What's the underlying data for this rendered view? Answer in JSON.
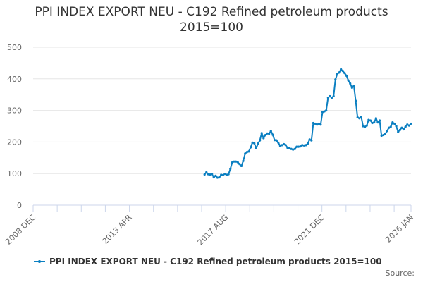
{
  "header": {
    "title_line1": "PPI INDEX EXPORT NEU - C192 Refined petroleum products",
    "title_line2": "2015=100"
  },
  "legend": {
    "label": "PPI INDEX EXPORT NEU - C192 Refined petroleum products 2015=100"
  },
  "footer": {
    "source": "Source:"
  },
  "colors": {
    "series": "#0b7fc1",
    "grid": "#e6e6e6",
    "axis": "#ccd6eb"
  },
  "chart_data": {
    "type": "line",
    "title": "PPI INDEX EXPORT NEU - C192 Refined petroleum products 2015=100",
    "xlabel": "",
    "ylabel": "",
    "ylim": [
      0,
      500
    ],
    "yticks": [
      "0",
      "100",
      "200",
      "300",
      "400",
      "500"
    ],
    "xticks": [
      "2008 DEC",
      "2013 APR",
      "2017 AUG",
      "2021 DEC",
      "2026 JAN"
    ],
    "grid": true,
    "legend_position": "bottom",
    "series": [
      {
        "name": "PPI INDEX EXPORT NEU - C192 Refined petroleum products 2015=100",
        "x": [
          "2016-09",
          "2016-10",
          "2016-11",
          "2016-12",
          "2017-01",
          "2017-02",
          "2017-03",
          "2017-04",
          "2017-05",
          "2017-06",
          "2017-07",
          "2017-08",
          "2017-09",
          "2017-10",
          "2017-11",
          "2017-12",
          "2018-01",
          "2018-02",
          "2018-03",
          "2018-04",
          "2018-05",
          "2018-06",
          "2018-07",
          "2018-08",
          "2018-09",
          "2018-10",
          "2018-11",
          "2018-12",
          "2019-01",
          "2019-02",
          "2019-03",
          "2019-04",
          "2019-05",
          "2019-06",
          "2019-07",
          "2019-08",
          "2019-09",
          "2019-10",
          "2019-11",
          "2019-12",
          "2020-01",
          "2020-02",
          "2020-03",
          "2020-04",
          "2020-05",
          "2020-06",
          "2020-07",
          "2020-08",
          "2020-09",
          "2020-10",
          "2020-11",
          "2020-12",
          "2021-01",
          "2021-02",
          "2021-03",
          "2021-04",
          "2021-05",
          "2021-06",
          "2021-07",
          "2021-08",
          "2021-09",
          "2021-10",
          "2021-11",
          "2021-12",
          "2022-01",
          "2022-02",
          "2022-03",
          "2022-04",
          "2022-05",
          "2022-06",
          "2022-07",
          "2022-08",
          "2022-09",
          "2022-10",
          "2022-11",
          "2022-12",
          "2023-01",
          "2023-02",
          "2023-03",
          "2023-04",
          "2023-05",
          "2023-06",
          "2023-07",
          "2023-08",
          "2023-09",
          "2023-10",
          "2023-11",
          "2023-12",
          "2024-01",
          "2024-02",
          "2024-03",
          "2024-04",
          "2024-05",
          "2024-06",
          "2024-07",
          "2024-08",
          "2024-09",
          "2024-10",
          "2024-11",
          "2024-12",
          "2025-01",
          "2025-02",
          "2025-03",
          "2025-04",
          "2025-05",
          "2025-06",
          "2025-07",
          "2025-08",
          "2025-09",
          "2025-10",
          "2025-11",
          "2025-12",
          "2026-01"
        ],
        "values": [
          97,
          104,
          98,
          97,
          99,
          88,
          93,
          87,
          88,
          96,
          95,
          99,
          96,
          98,
          115,
          135,
          138,
          138,
          136,
          130,
          124,
          140,
          163,
          168,
          170,
          183,
          198,
          196,
          180,
          195,
          205,
          228,
          212,
          222,
          227,
          226,
          235,
          223,
          206,
          205,
          198,
          188,
          190,
          193,
          190,
          182,
          180,
          178,
          176,
          178,
          185,
          185,
          186,
          190,
          189,
          190,
          195,
          208,
          205,
          260,
          258,
          255,
          258,
          255,
          295,
          297,
          300,
          340,
          345,
          340,
          345,
          398,
          415,
          420,
          430,
          425,
          418,
          410,
          395,
          385,
          372,
          378,
          330,
          278,
          275,
          280,
          250,
          248,
          252,
          270,
          268,
          260,
          262,
          275,
          262,
          268,
          220,
          222,
          225,
          235,
          245,
          248,
          262,
          258,
          250,
          232,
          238,
          245,
          240,
          248,
          255,
          252,
          258
        ]
      }
    ]
  }
}
